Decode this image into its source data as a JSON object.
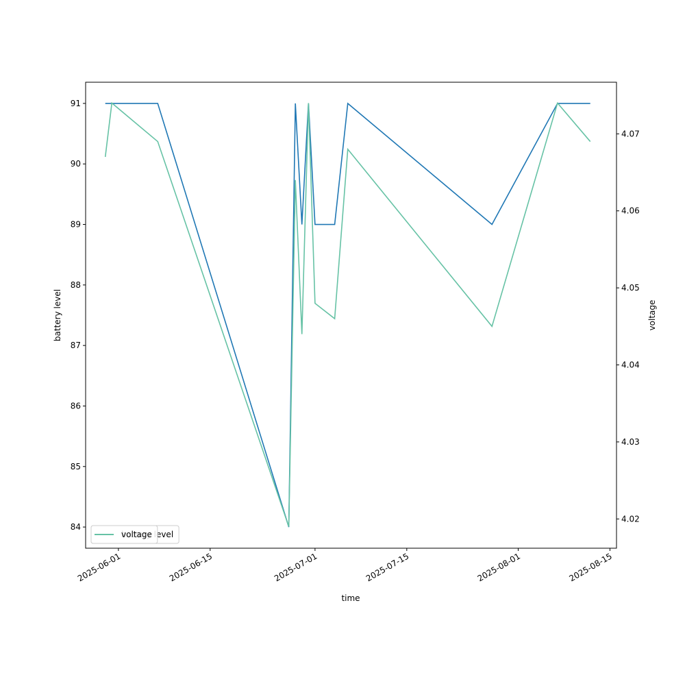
{
  "chart_data": {
    "type": "line",
    "x_label": "time",
    "y_label": "battery level",
    "y2_label": "voltage",
    "x": [
      "2025-05-30",
      "2025-05-31",
      "2025-06-07",
      "2025-06-27",
      "2025-06-28",
      "2025-06-29",
      "2025-06-30",
      "2025-07-01",
      "2025-07-04",
      "2025-07-06",
      "2025-07-28",
      "2025-08-07",
      "2025-08-12"
    ],
    "series": [
      {
        "name": "battery level",
        "color": "#1f77b4",
        "axis": "y",
        "values": [
          91,
          91,
          91,
          84,
          91,
          89,
          91,
          89,
          89,
          91,
          89,
          91,
          91
        ]
      },
      {
        "name": "voltage",
        "color": "#66c2a5",
        "axis": "y2",
        "values": [
          4.067,
          4.074,
          4.069,
          4.019,
          4.064,
          4.044,
          4.074,
          4.048,
          4.046,
          4.068,
          4.045,
          4.074,
          4.069
        ]
      }
    ],
    "xlim": [
      "2025-05-27",
      "2025-08-16"
    ],
    "xticks": [
      "2025-06-01",
      "2025-06-15",
      "2025-07-01",
      "2025-07-15",
      "2025-08-01",
      "2025-08-15"
    ],
    "ylim": [
      83.65,
      91.35
    ],
    "yticks": [
      84,
      85,
      86,
      87,
      88,
      89,
      90,
      91
    ],
    "y2lim": [
      4.0162,
      4.0767
    ],
    "y2ticks": [
      4.02,
      4.03,
      4.04,
      4.05,
      4.06,
      4.07
    ],
    "legend": "lower left",
    "grid": false
  }
}
